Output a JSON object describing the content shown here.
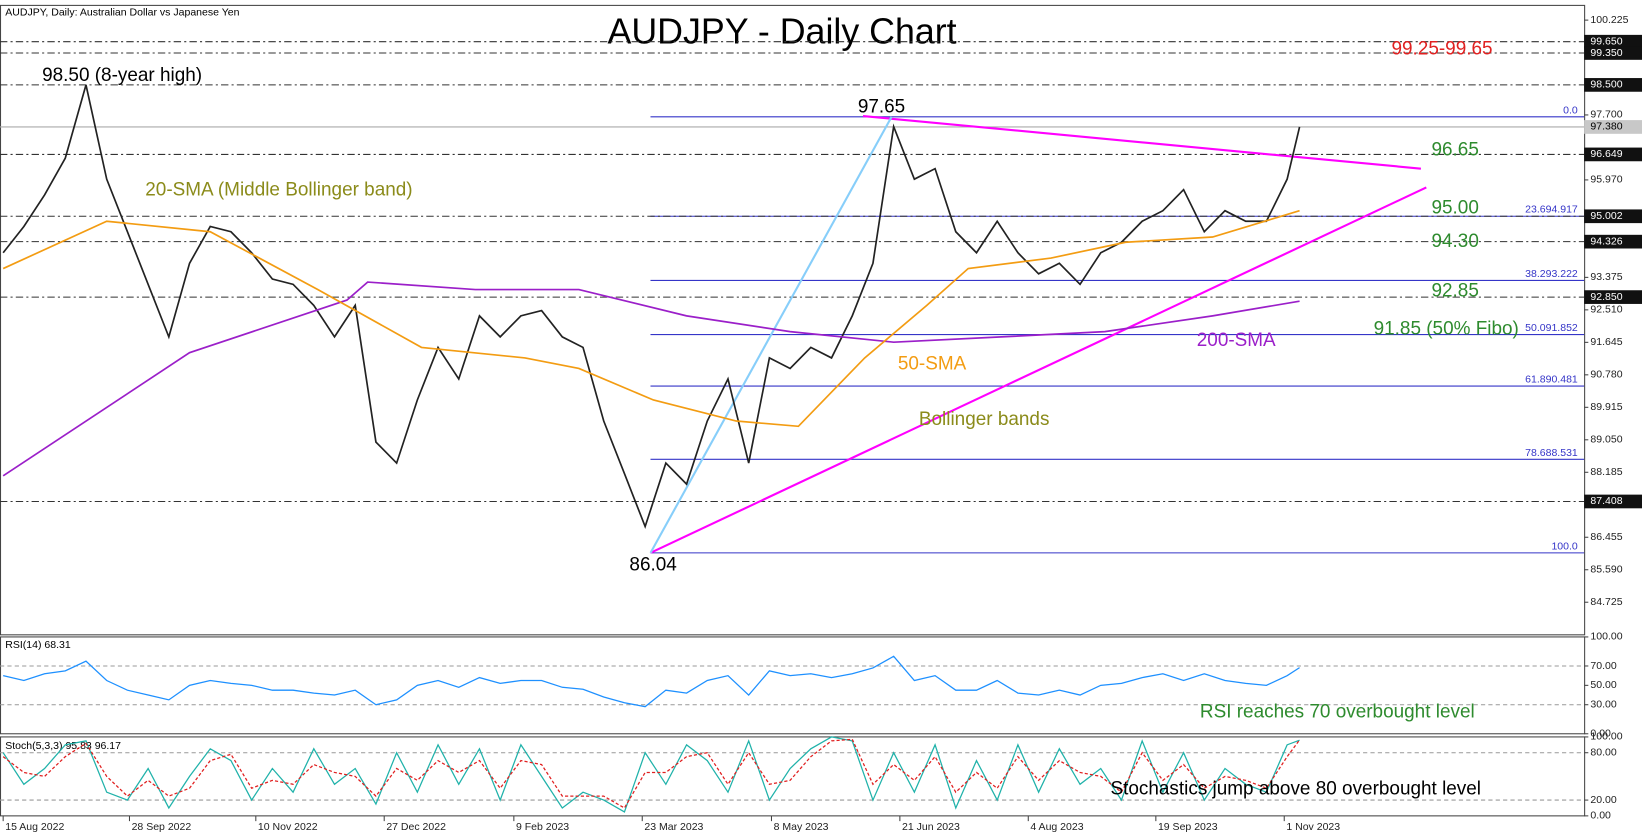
{
  "chart_data": [
    {
      "type": "line",
      "header": "AUDJPY, Daily:  Australian Dollar vs Japanese Yen",
      "title": "AUDJPY - Daily Chart",
      "xlim": [
        -0.762,
        381.7
      ],
      "ylim": [
        83.857,
        100.617
      ],
      "xticks": [
        {
          "value": 0,
          "label": "15 Aug 2022"
        },
        {
          "value": 30.5,
          "label": "28 Sep 2022"
        },
        {
          "value": 61,
          "label": "10 Nov 2022"
        },
        {
          "value": 92,
          "label": "27 Dec 2022"
        },
        {
          "value": 123.3,
          "label": "9 Feb 2023"
        },
        {
          "value": 154.3,
          "label": "23 Mar 2023"
        },
        {
          "value": 185.5,
          "label": "8 May 2023"
        },
        {
          "value": 216.5,
          "label": "21 Jun 2023"
        },
        {
          "value": 247.5,
          "label": "4 Aug 2023"
        },
        {
          "value": 278.3,
          "label": "19 Sep 2023"
        },
        {
          "value": 309.3,
          "label": "1 Nov 2023"
        }
      ],
      "yticks": [
        100.225,
        {
          "value": 97.7,
          "label": "97.700"
        },
        {
          "value": 95.97,
          "label": "95.970"
        },
        93.375,
        {
          "value": 92.51,
          "label": "92.510"
        },
        91.645,
        {
          "value": 90.78,
          "label": "90.780"
        },
        89.915,
        {
          "value": 89.05,
          "label": "89.050"
        },
        88.185,
        86.455,
        {
          "value": 85.59,
          "label": "85.590"
        },
        84.725
      ],
      "levels": [
        {
          "value": 99.65,
          "label": "99.650"
        },
        {
          "value": 99.35,
          "label": "99.350"
        },
        {
          "value": 98.5,
          "label": "98.500"
        },
        96.649,
        95.002,
        94.326,
        {
          "value": 92.85,
          "label": "92.850"
        },
        87.408
      ],
      "price_label": {
        "value": 97.38,
        "label": "97.380"
      },
      "fibo": [
        {
          "value": 97.65,
          "label": "0.0"
        },
        {
          "value": 95.002,
          "label": "23.694.917"
        },
        {
          "value": 93.293,
          "label": "38.293.222"
        },
        {
          "value": 91.852,
          "label": "50.091.852"
        },
        {
          "value": 90.481,
          "label": "61.890.481"
        },
        {
          "value": 88.531,
          "label": "78.688.531"
        },
        {
          "value": 86.04,
          "label": "100.0"
        }
      ],
      "trendlines": [
        {
          "color": "#ff00ff",
          "x": [
            156.3,
            343.6
          ],
          "y": [
            86.04,
            95.77
          ]
        },
        {
          "color": "#ff00ff",
          "x": [
            207.6,
            342.3
          ],
          "y": [
            97.67,
            96.27
          ]
        },
        {
          "color": "#87cefa",
          "x": [
            156.3,
            214.5
          ],
          "y": [
            86.04,
            97.65
          ]
        }
      ],
      "series": [
        {
          "color": "#222222",
          "x": [
            0,
            5,
            10,
            15,
            20,
            25,
            30,
            35,
            40,
            45,
            50,
            55,
            60,
            65,
            70,
            75,
            80,
            85,
            90,
            95,
            100,
            105,
            110,
            115,
            120,
            125,
            130,
            135,
            140,
            145,
            150,
            155,
            160,
            165,
            170,
            175,
            180,
            185,
            190,
            195,
            200,
            205,
            210,
            215,
            220,
            225,
            230,
            235,
            240,
            245,
            250,
            255,
            260,
            265,
            270,
            275,
            280,
            285,
            290,
            295,
            300,
            305,
            310,
            313
          ],
          "values": [
            94.03,
            94.73,
            95.57,
            96.55,
            98.5,
            95.99,
            94.59,
            93.19,
            91.79,
            93.75,
            94.73,
            94.59,
            94.03,
            93.33,
            93.19,
            92.63,
            91.79,
            92.63,
            88.99,
            88.43,
            90.11,
            91.51,
            90.67,
            92.35,
            91.79,
            92.35,
            92.49,
            91.79,
            91.51,
            89.55,
            88.15,
            86.74,
            88.43,
            87.87,
            89.55,
            90.67,
            88.43,
            91.23,
            90.95,
            91.51,
            91.23,
            92.35,
            93.75,
            97.39,
            95.99,
            96.27,
            94.59,
            94.03,
            94.87,
            94.03,
            93.47,
            93.75,
            93.19,
            94.03,
            94.31,
            94.87,
            95.15,
            95.71,
            94.59,
            95.15,
            94.87,
            94.87,
            95.99,
            97.38
          ]
        },
        {
          "name": "200-SMA",
          "color": "#9b1fc9",
          "x": [
            0,
            45,
            83,
            88,
            114,
            139,
            165,
            190,
            215,
            241,
            266,
            292,
            313
          ],
          "values": [
            88.09,
            91.37,
            92.77,
            93.25,
            93.05,
            93.05,
            92.35,
            91.93,
            91.65,
            91.79,
            91.93,
            92.35,
            92.74
          ]
        },
        {
          "name": "50-SMA",
          "color": "#f39c12",
          "x": [
            0,
            25,
            50,
            76,
            101,
            126,
            139,
            157,
            177,
            192,
            208,
            223,
            233,
            253,
            271,
            292,
            313
          ],
          "values": [
            93.61,
            94.87,
            94.59,
            93.05,
            91.51,
            91.23,
            90.95,
            90.11,
            89.55,
            89.41,
            91.23,
            92.63,
            93.61,
            93.89,
            94.31,
            94.45,
            95.15
          ]
        }
      ],
      "annotations": [
        {
          "text": "98.50 (8-year high)",
          "color": "#000000"
        },
        {
          "text": "20-SMA (Middle Bollinger band)",
          "color": "#8b8b1a"
        },
        {
          "text": "97.65",
          "color": "#000000"
        },
        {
          "text": "86.04",
          "color": "#000000"
        },
        {
          "text": "96.65",
          "color": "#2e8b2e"
        },
        {
          "text": "95.00",
          "color": "#2e8b2e"
        },
        {
          "text": "94.30",
          "color": "#2e8b2e"
        },
        {
          "text": "92.85",
          "color": "#2e8b2e"
        },
        {
          "text": "91.85 (50% Fibo)",
          "color": "#2e8b2e"
        },
        {
          "text": "Bollinger bands",
          "color": "#8b8b1a"
        },
        {
          "text": "99.25-99.65",
          "color": "#e02020"
        }
      ]
    },
    {
      "type": "line",
      "title": "RSI(14) 68.31",
      "xlim": [
        -0.762,
        381.7
      ],
      "ylim": [
        0,
        100
      ],
      "yticks": [
        {
          "value": 100,
          "label": "100.00"
        },
        {
          "value": 70,
          "label": "70.00"
        },
        {
          "value": 50,
          "label": "50.00"
        },
        {
          "value": 30,
          "label": "30.00"
        },
        {
          "value": 0,
          "label": "0.00"
        }
      ],
      "series": [
        {
          "color": "#1e90ff",
          "x": [
            0,
            5,
            10,
            15,
            20,
            25,
            30,
            35,
            40,
            45,
            50,
            55,
            60,
            65,
            70,
            75,
            80,
            85,
            90,
            95,
            100,
            105,
            110,
            115,
            120,
            125,
            130,
            135,
            140,
            145,
            150,
            155,
            160,
            165,
            170,
            175,
            180,
            185,
            190,
            195,
            200,
            205,
            210,
            215,
            220,
            225,
            230,
            235,
            240,
            245,
            250,
            255,
            260,
            265,
            270,
            275,
            280,
            285,
            290,
            295,
            300,
            305,
            310,
            313
          ],
          "values": [
            60,
            55,
            62,
            65,
            75,
            55,
            45,
            40,
            35,
            50,
            55,
            52,
            50,
            45,
            45,
            42,
            40,
            45,
            30,
            35,
            50,
            55,
            48,
            58,
            52,
            55,
            55,
            48,
            46,
            38,
            32,
            28,
            45,
            42,
            55,
            60,
            40,
            65,
            60,
            62,
            58,
            62,
            68,
            80,
            55,
            60,
            45,
            45,
            55,
            42,
            40,
            45,
            40,
            50,
            52,
            58,
            62,
            55,
            62,
            55,
            52,
            50,
            60,
            68.31
          ]
        }
      ],
      "annotations": [
        {
          "text": "RSI reaches 70 overbought level",
          "color": "#2e8b2e"
        }
      ]
    },
    {
      "type": "line",
      "title": "Stoch(5,3,3) 95.83 96.17",
      "xlim": [
        -0.762,
        381.7
      ],
      "ylim": [
        0,
        100
      ],
      "yticks": [
        {
          "value": 100,
          "label": "100.00"
        },
        {
          "value": 80,
          "label": "80.00"
        },
        {
          "value": 20,
          "label": "20.00"
        },
        {
          "value": 0,
          "label": "0.00"
        }
      ],
      "series": [
        {
          "color": "#20b2aa",
          "x": [
            0,
            5,
            10,
            15,
            20,
            25,
            30,
            35,
            40,
            45,
            50,
            55,
            60,
            65,
            70,
            75,
            80,
            85,
            90,
            95,
            100,
            105,
            110,
            115,
            120,
            125,
            130,
            135,
            140,
            145,
            150,
            155,
            160,
            165,
            170,
            175,
            180,
            185,
            190,
            195,
            200,
            205,
            210,
            215,
            220,
            225,
            230,
            235,
            240,
            245,
            250,
            255,
            260,
            265,
            270,
            275,
            280,
            285,
            290,
            295,
            300,
            305,
            310,
            313
          ],
          "values": [
            80,
            40,
            60,
            90,
            95,
            30,
            20,
            60,
            10,
            50,
            85,
            70,
            20,
            60,
            30,
            85,
            40,
            60,
            15,
            80,
            30,
            90,
            40,
            85,
            20,
            90,
            50,
            10,
            30,
            20,
            5,
            80,
            40,
            90,
            70,
            30,
            95,
            20,
            60,
            85,
            100,
            95,
            20,
            80,
            30,
            90,
            10,
            70,
            20,
            90,
            30,
            85,
            40,
            60,
            20,
            95,
            30,
            80,
            20,
            60,
            40,
            30,
            90,
            95.83
          ]
        },
        {
          "color": "#e02020",
          "dashed": true,
          "x": [
            0,
            5,
            10,
            15,
            20,
            25,
            30,
            35,
            40,
            45,
            50,
            55,
            60,
            65,
            70,
            75,
            80,
            85,
            90,
            95,
            100,
            105,
            110,
            115,
            120,
            125,
            130,
            135,
            140,
            145,
            150,
            155,
            160,
            165,
            170,
            175,
            180,
            185,
            190,
            195,
            200,
            205,
            210,
            215,
            220,
            225,
            230,
            235,
            240,
            245,
            250,
            255,
            260,
            265,
            270,
            275,
            280,
            285,
            290,
            295,
            300,
            305,
            310,
            313
          ],
          "values": [
            75,
            55,
            50,
            75,
            92,
            50,
            25,
            45,
            25,
            35,
            70,
            78,
            35,
            45,
            40,
            65,
            55,
            50,
            25,
            60,
            45,
            70,
            55,
            70,
            35,
            70,
            65,
            25,
            25,
            25,
            10,
            55,
            55,
            75,
            80,
            40,
            80,
            40,
            45,
            75,
            95,
            97,
            40,
            65,
            45,
            75,
            30,
            55,
            35,
            75,
            45,
            70,
            55,
            50,
            30,
            80,
            45,
            65,
            35,
            50,
            45,
            35,
            75,
            96.17
          ]
        }
      ],
      "annotations": [
        {
          "text": "Stochastics jump above 80 overbought level",
          "color": "#000000"
        }
      ]
    }
  ]
}
